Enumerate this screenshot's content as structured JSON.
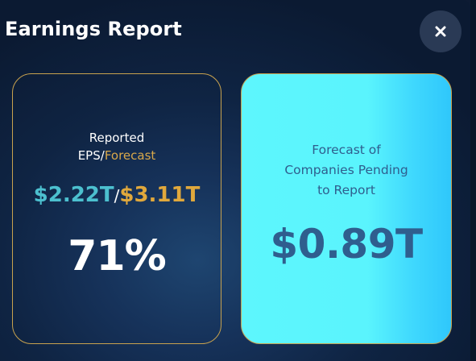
{
  "header": {
    "title": "Earnings Report",
    "close_icon": "close-icon"
  },
  "left_card": {
    "label_line1": "Reported",
    "label_prefix": "EPS/",
    "label_forecast": "Forecast",
    "reported_value": "$2.22T",
    "separator": "/",
    "forecast_value": "$3.11T",
    "percent": "71%"
  },
  "right_card": {
    "label_line1": "Forecast of",
    "label_line2": "Companies Pending",
    "label_line3": "to Report",
    "value": "$0.89T"
  },
  "colors": {
    "accent_gold": "#c8a24e",
    "reported_teal": "#4cc0cf",
    "forecast_orange": "#e0a83c",
    "card_cyan": "#5df6fd",
    "card_text_blue": "#2f5e8e"
  }
}
